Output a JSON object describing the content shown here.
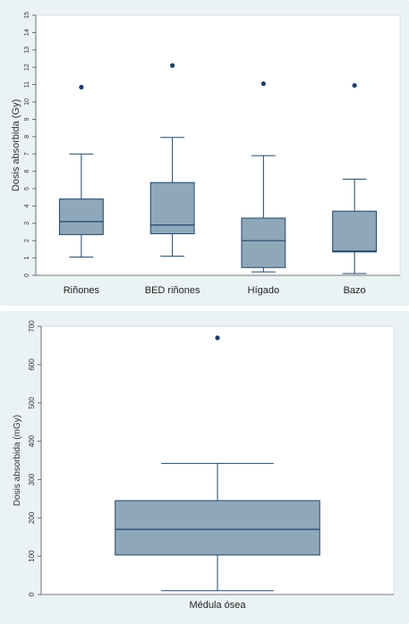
{
  "chart_data": [
    {
      "type": "box",
      "ylabel": "Dosis absorbida (Gy)",
      "ylim": [
        0,
        15
      ],
      "yticks": [
        0,
        1,
        2,
        3,
        4,
        5,
        6,
        7,
        8,
        9,
        10,
        11,
        12,
        13,
        14,
        15
      ],
      "grid": false,
      "categories": [
        "Riñones",
        "BED riñones",
        "Hígado",
        "Bazo"
      ],
      "boxes": [
        {
          "category": "Riñones",
          "whisker_low": 1.05,
          "q1": 2.35,
          "median": 3.1,
          "q3": 4.4,
          "whisker_high": 7.0,
          "outliers": [
            10.85
          ]
        },
        {
          "category": "BED riñones",
          "whisker_low": 1.1,
          "q1": 2.4,
          "median": 2.9,
          "q3": 5.35,
          "whisker_high": 7.95,
          "outliers": [
            12.1
          ]
        },
        {
          "category": "Hígado",
          "whisker_low": 0.2,
          "q1": 0.45,
          "median": 2.0,
          "q3": 3.3,
          "whisker_high": 6.9,
          "outliers": [
            11.05
          ]
        },
        {
          "category": "Bazo",
          "whisker_low": 0.1,
          "q1": 1.35,
          "median": 1.4,
          "q3": 3.7,
          "whisker_high": 5.55,
          "outliers": [
            10.95
          ]
        }
      ]
    },
    {
      "type": "box",
      "ylabel": "Dosis absorbida (mGy)",
      "ylim": [
        0,
        700
      ],
      "yticks": [
        0,
        100,
        200,
        300,
        400,
        500,
        600,
        700
      ],
      "grid": false,
      "categories": [
        "Médula ósea"
      ],
      "boxes": [
        {
          "category": "Médula ósea",
          "whisker_low": 10,
          "q1": 103,
          "median": 170,
          "q3": 245,
          "whisker_high": 342,
          "outliers": [
            670
          ]
        }
      ]
    }
  ],
  "colors": {
    "panel_bg": "#eaf2f3",
    "plot_bg": "#ffffff",
    "box_fill": "#8ea8b9",
    "box_stroke": "#23456a",
    "outlier": "#1d3d66",
    "axis": "#555555"
  }
}
